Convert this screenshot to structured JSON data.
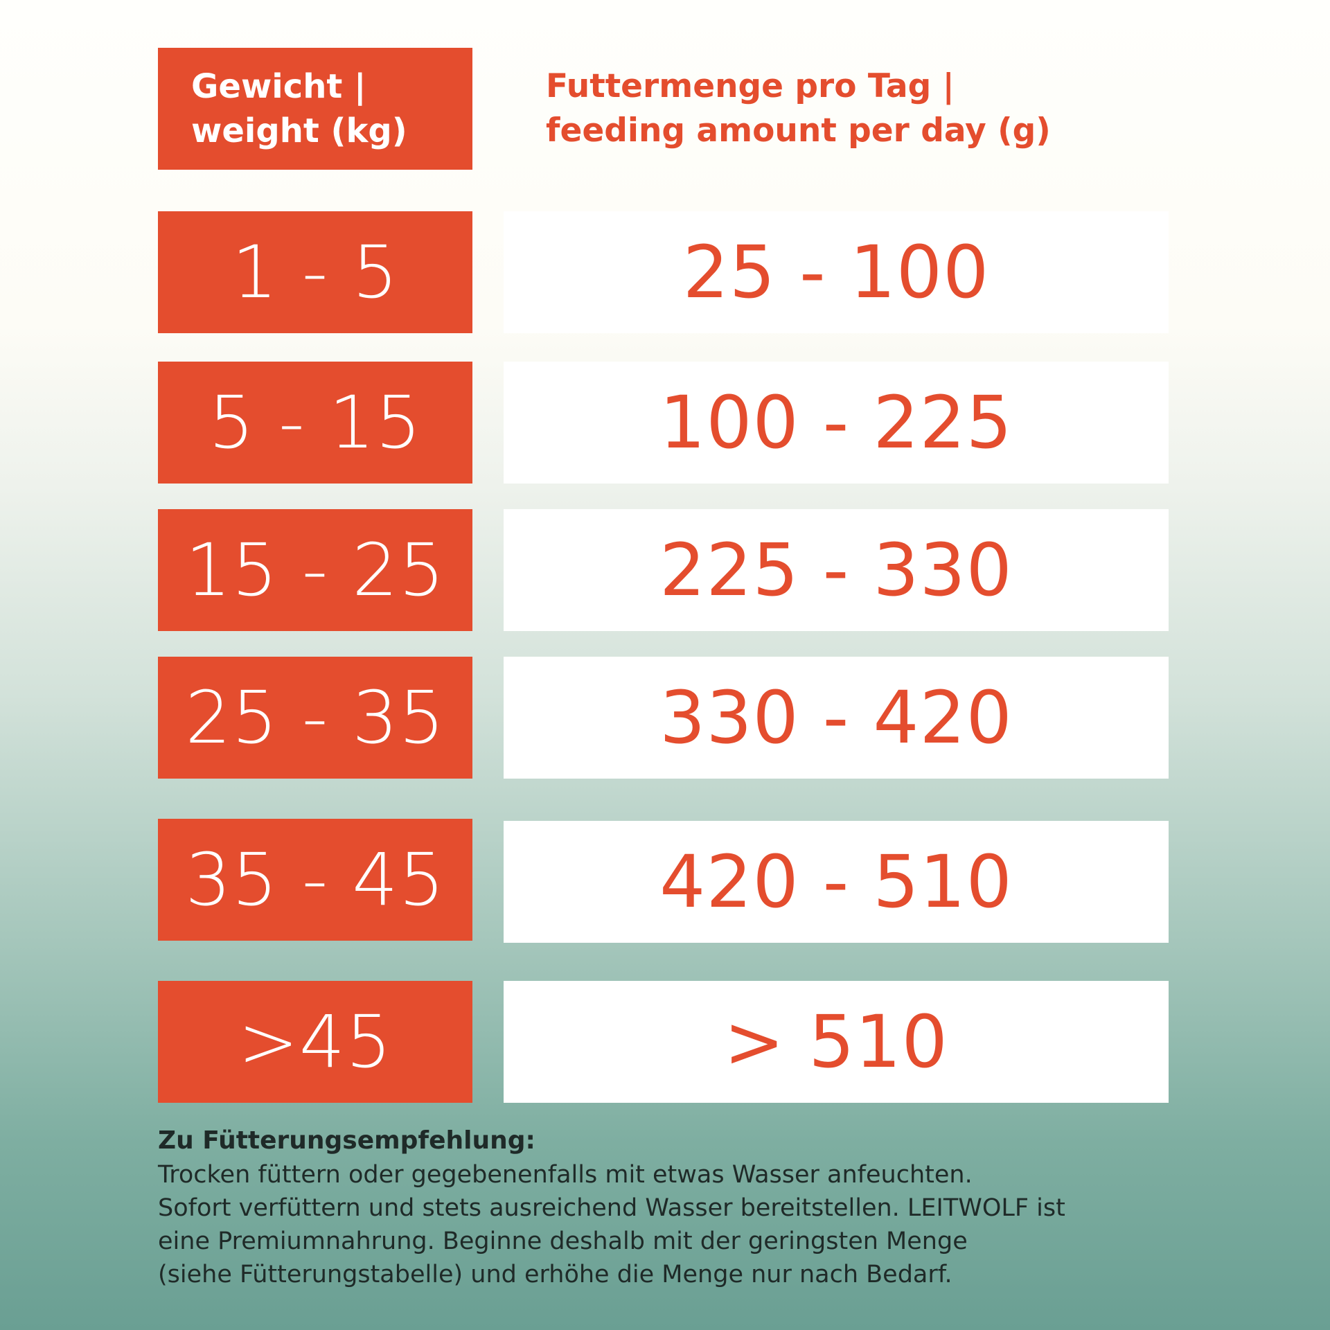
{
  "colors": {
    "accent": "#e44d2e",
    "cell_white": "#ffffff",
    "text_dark": "#1f2a28"
  },
  "table": {
    "header": {
      "weight": "Gewicht |\nweight (kg)",
      "amount": "Futtermenge pro Tag |\nfeeding amount per day (g)"
    },
    "rows": [
      {
        "weight": "1 - 5",
        "amount": "25 - 100"
      },
      {
        "weight": "5 - 15",
        "amount": "100 - 225"
      },
      {
        "weight": "15 - 25",
        "amount": "225 - 330"
      },
      {
        "weight": "25 - 35",
        "amount": "330 - 420"
      },
      {
        "weight": "35 - 45",
        "amount": "420 - 510"
      },
      {
        "weight": ">45",
        "amount": "> 510"
      }
    ]
  },
  "note": {
    "title": "Zu Fütterungsempfehlung:",
    "body": "Trocken füttern oder gegebenenfalls mit etwas Wasser anfeuchten.\nSofort verfüttern und stets ausreichend Wasser bereitstellen. LEITWOLF ist\neine Premiumnahrung. Beginne deshalb mit der geringsten Menge\n(siehe Fütterungstabelle) und erhöhe die Menge nur nach Bedarf."
  }
}
